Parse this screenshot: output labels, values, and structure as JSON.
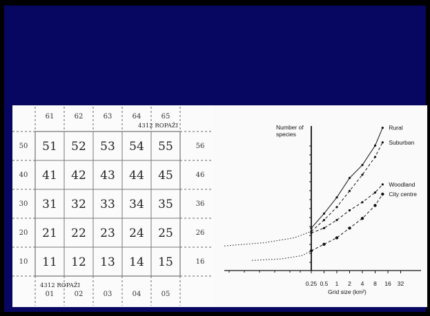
{
  "grid_map": {
    "top_labels": [
      "61",
      "62",
      "63",
      "64",
      "65"
    ],
    "bottom_labels": [
      "01",
      "02",
      "03",
      "04",
      "05"
    ],
    "left_labels": [
      "50",
      "40",
      "30",
      "20",
      "10"
    ],
    "right_labels": [
      "56",
      "46",
      "36",
      "26",
      "16"
    ],
    "rows": [
      [
        "51",
        "52",
        "53",
        "54",
        "55"
      ],
      [
        "41",
        "42",
        "43",
        "44",
        "45"
      ],
      [
        "31",
        "32",
        "33",
        "34",
        "35"
      ],
      [
        "21",
        "22",
        "23",
        "24",
        "25"
      ],
      [
        "11",
        "12",
        "13",
        "14",
        "15"
      ]
    ],
    "sheet_label_top": "4312 ROPAŽI",
    "sheet_label_bottom": "4312 ROPAŽI"
  },
  "chart_data": {
    "type": "line",
    "ylabel": "Number of species",
    "xlabel": "Grid size (km²)",
    "x_ticks": [
      "0.25",
      "0.5",
      "1",
      "2",
      "4",
      "8",
      "16",
      "32"
    ],
    "xscale": "log",
    "colors": {
      "line": "#111111",
      "dotted": "#111111"
    },
    "series": [
      {
        "name": "Rural",
        "style": "solid",
        "x": [
          0.25,
          0.5,
          1,
          2,
          4,
          8,
          12
        ],
        "y": [
          19,
          28,
          38,
          50,
          58,
          70,
          81
        ]
      },
      {
        "name": "Suburban",
        "style": "dashed",
        "x": [
          0.25,
          0.5,
          1,
          2,
          4,
          8,
          12
        ],
        "y": [
          17,
          24,
          32,
          42,
          52,
          63,
          72
        ]
      },
      {
        "name": "Woodland",
        "style": "dashed",
        "x": [
          0.25,
          0.5,
          1,
          2,
          4,
          8,
          12
        ],
        "y": [
          16,
          19,
          24,
          30,
          35,
          41,
          46
        ]
      },
      {
        "name": "City centre",
        "style": "dashed",
        "x": [
          0.25,
          0.5,
          1,
          2,
          4,
          8,
          12
        ],
        "y": [
          5,
          9,
          13,
          19,
          25,
          33,
          40
        ]
      }
    ],
    "extrapolations": [
      {
        "style": "dotted",
        "x": [
          0.002,
          0.02,
          0.1,
          0.25
        ],
        "y": [
          8,
          10,
          13,
          17
        ]
      },
      {
        "style": "dotted",
        "x": [
          0.01,
          0.05,
          0.15,
          0.25
        ],
        "y": [
          -1,
          0,
          2,
          5
        ]
      }
    ]
  }
}
